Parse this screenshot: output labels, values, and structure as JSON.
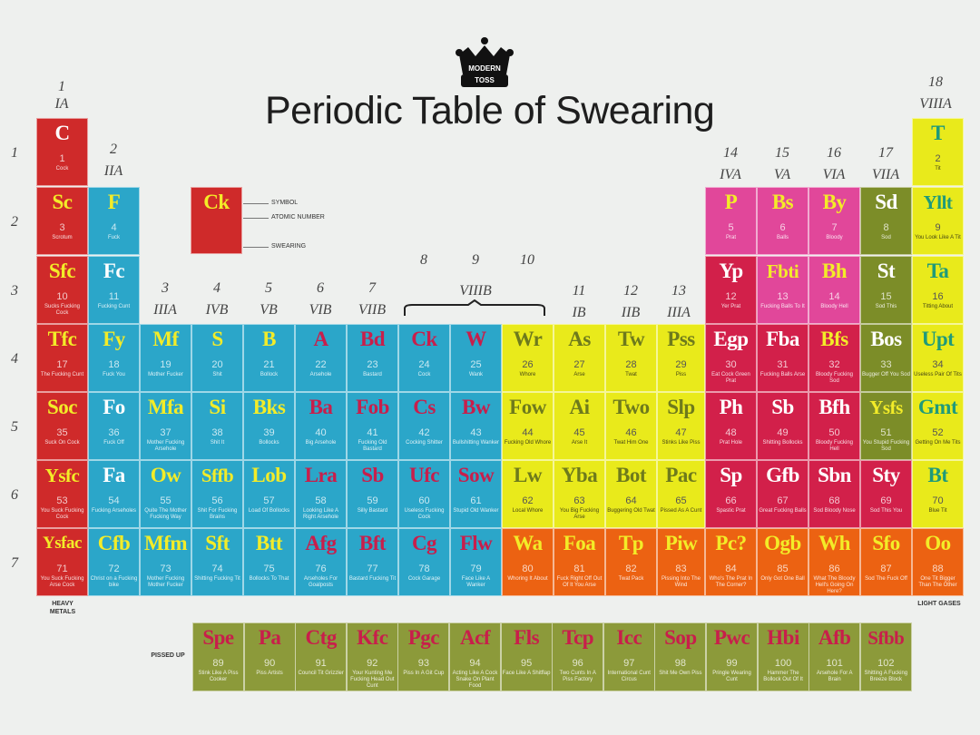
{
  "title": "Periodic Table of Swearing",
  "logo_text": [
    "MODERN",
    "TOSS"
  ],
  "groups": [
    "1",
    "IA",
    "2",
    "IIA",
    "3",
    "IIIA",
    "4",
    "IVB",
    "5",
    "VB",
    "6",
    "VIB",
    "7",
    "VIIB",
    "8",
    "9",
    "10",
    "VIIIB",
    "11",
    "IB",
    "12",
    "IIB",
    "13",
    "IIIA",
    "14",
    "IVA",
    "15",
    "VA",
    "16",
    "VIA",
    "17",
    "VIIA",
    "18",
    "VIIIA"
  ],
  "periods": [
    "1",
    "2",
    "3",
    "4",
    "5",
    "6",
    "7"
  ],
  "key": {
    "symbol": "Ck",
    "label_symbol": "SYMBOL",
    "label_number": "ATOMIC NUMBER",
    "label_swearing": "SWEARING"
  },
  "labels": {
    "heavy": "HEAVY METALS",
    "light": "LIGHT GASES",
    "pissed": "PISSED UP"
  },
  "colors": {
    "red": "#cf2a2a",
    "blue": "#2ba6c9",
    "yellow": "#e9ea1b",
    "pink": "#e1479a",
    "crimson": "#d2204a",
    "olive": "#7c8d28",
    "orange": "#ec6212",
    "khaki": "#8c9a3a",
    "sym_yellow": "#f3ec28",
    "sym_crimson": "#c81e4b",
    "sym_white": "#ffffff",
    "sym_green": "#1f9a7a",
    "sym_olive": "#6e7a1c"
  },
  "elements": [
    {
      "s": "C",
      "n": "1",
      "w": "Cock",
      "c": "red",
      "sc": "sym_white"
    },
    {
      "s": "Sc",
      "n": "3",
      "w": "Scrotum",
      "c": "red",
      "sc": "sym_yellow"
    },
    {
      "s": "F",
      "n": "4",
      "w": "Fuck",
      "c": "blue",
      "sc": "sym_yellow"
    },
    {
      "s": "Sfc",
      "n": "10",
      "w": "Sucks Fucking Cock",
      "c": "red",
      "sc": "sym_yellow"
    },
    {
      "s": "Fc",
      "n": "11",
      "w": "Fucking Cunt",
      "c": "blue",
      "sc": "sym_white"
    },
    {
      "s": "Tfc",
      "n": "17",
      "w": "The Fucking Cunt",
      "c": "red",
      "sc": "sym_yellow"
    },
    {
      "s": "Fy",
      "n": "18",
      "w": "Fuck You",
      "c": "blue",
      "sc": "sym_yellow"
    },
    {
      "s": "Mf",
      "n": "19",
      "w": "Mother Fucker",
      "c": "blue",
      "sc": "sym_yellow"
    },
    {
      "s": "S",
      "n": "20",
      "w": "Shit",
      "c": "blue",
      "sc": "sym_yellow"
    },
    {
      "s": "B",
      "n": "21",
      "w": "Bollock",
      "c": "blue",
      "sc": "sym_yellow"
    },
    {
      "s": "A",
      "n": "22",
      "w": "Arsehole",
      "c": "blue",
      "sc": "sym_crimson"
    },
    {
      "s": "Bd",
      "n": "23",
      "w": "Bastard",
      "c": "blue",
      "sc": "sym_crimson"
    },
    {
      "s": "Ck",
      "n": "24",
      "w": "Cock",
      "c": "blue",
      "sc": "sym_crimson"
    },
    {
      "s": "W",
      "n": "25",
      "w": "Wank",
      "c": "blue",
      "sc": "sym_crimson"
    },
    {
      "s": "Wr",
      "n": "26",
      "w": "Whore",
      "c": "yellow",
      "sc": "sym_olive"
    },
    {
      "s": "As",
      "n": "27",
      "w": "Arse",
      "c": "yellow",
      "sc": "sym_olive"
    },
    {
      "s": "Tw",
      "n": "28",
      "w": "Twat",
      "c": "yellow",
      "sc": "sym_olive"
    },
    {
      "s": "Pss",
      "n": "29",
      "w": "Piss",
      "c": "yellow",
      "sc": "sym_olive"
    },
    {
      "s": "Soc",
      "n": "35",
      "w": "Suck On Cock",
      "c": "red",
      "sc": "sym_yellow"
    },
    {
      "s": "Fo",
      "n": "36",
      "w": "Fuck Off",
      "c": "blue",
      "sc": "sym_white"
    },
    {
      "s": "Mfa",
      "n": "37",
      "w": "Mother Fucking Arsehole",
      "c": "blue",
      "sc": "sym_yellow"
    },
    {
      "s": "Si",
      "n": "38",
      "w": "Shit It",
      "c": "blue",
      "sc": "sym_yellow"
    },
    {
      "s": "Bks",
      "n": "39",
      "w": "Bollocks",
      "c": "blue",
      "sc": "sym_yellow"
    },
    {
      "s": "Ba",
      "n": "40",
      "w": "Big Arsehole",
      "c": "blue",
      "sc": "sym_crimson"
    },
    {
      "s": "Fob",
      "n": "41",
      "w": "Fucking Old Bastard",
      "c": "blue",
      "sc": "sym_crimson"
    },
    {
      "s": "Cs",
      "n": "42",
      "w": "Cocking Shitter",
      "c": "blue",
      "sc": "sym_crimson"
    },
    {
      "s": "Bw",
      "n": "43",
      "w": "Bullshitting Wanker",
      "c": "blue",
      "sc": "sym_crimson"
    },
    {
      "s": "Fow",
      "n": "44",
      "w": "Fucking Old Whore",
      "c": "yellow",
      "sc": "sym_olive"
    },
    {
      "s": "Ai",
      "n": "45",
      "w": "Arse It",
      "c": "yellow",
      "sc": "sym_olive"
    },
    {
      "s": "Two",
      "n": "46",
      "w": "Twat Him One",
      "c": "yellow",
      "sc": "sym_olive"
    },
    {
      "s": "Slp",
      "n": "47",
      "w": "Stinks Like Piss",
      "c": "yellow",
      "sc": "sym_olive"
    },
    {
      "s": "Ysfc",
      "n": "53",
      "w": "You Suck Fucking Cock",
      "c": "red",
      "sc": "sym_yellow"
    },
    {
      "s": "Fa",
      "n": "54",
      "w": "Fucking Arseholes",
      "c": "blue",
      "sc": "sym_white"
    },
    {
      "s": "Ow",
      "n": "55",
      "w": "Quite The Mother Fucking Way",
      "c": "blue",
      "sc": "sym_yellow"
    },
    {
      "s": "Sffb",
      "n": "56",
      "w": "Shit For Fucking Brains",
      "c": "blue",
      "sc": "sym_yellow"
    },
    {
      "s": "Lob",
      "n": "57",
      "w": "Load Of Bollocks",
      "c": "blue",
      "sc": "sym_yellow"
    },
    {
      "s": "Lra",
      "n": "58",
      "w": "Looking Like A Right Arsehole",
      "c": "blue",
      "sc": "sym_crimson"
    },
    {
      "s": "Sb",
      "n": "59",
      "w": "Silly Bastard",
      "c": "blue",
      "sc": "sym_crimson"
    },
    {
      "s": "Ufc",
      "n": "60",
      "w": "Useless Fucking Cock",
      "c": "blue",
      "sc": "sym_crimson"
    },
    {
      "s": "Sow",
      "n": "61",
      "w": "Stupid Old Wanker",
      "c": "blue",
      "sc": "sym_crimson"
    },
    {
      "s": "Lw",
      "n": "62",
      "w": "Local Whore",
      "c": "yellow",
      "sc": "sym_olive"
    },
    {
      "s": "Yba",
      "n": "63",
      "w": "You Big Fucking Arse",
      "c": "yellow",
      "sc": "sym_olive"
    },
    {
      "s": "Bot",
      "n": "64",
      "w": "Buggering Old Twat",
      "c": "yellow",
      "sc": "sym_olive"
    },
    {
      "s": "Pac",
      "n": "65",
      "w": "Pissed As A Cunt",
      "c": "yellow",
      "sc": "sym_olive"
    },
    {
      "s": "Ysfac",
      "n": "71",
      "w": "You Suck Fucking Arse Cock",
      "c": "red",
      "sc": "sym_yellow"
    },
    {
      "s": "Cfb",
      "n": "72",
      "w": "Christ on a Fucking bike",
      "c": "blue",
      "sc": "sym_yellow"
    },
    {
      "s": "Mfm",
      "n": "73",
      "w": "Mother Fucking Mother Fucker",
      "c": "blue",
      "sc": "sym_yellow"
    },
    {
      "s": "Sft",
      "n": "74",
      "w": "Shitting Fucking Tit",
      "c": "blue",
      "sc": "sym_yellow"
    },
    {
      "s": "Btt",
      "n": "75",
      "w": "Bollocks To That",
      "c": "blue",
      "sc": "sym_yellow"
    },
    {
      "s": "Afg",
      "n": "76",
      "w": "Arseholes For Goalposts",
      "c": "blue",
      "sc": "sym_crimson"
    },
    {
      "s": "Bft",
      "n": "77",
      "w": "Bastard Fucking Tit",
      "c": "blue",
      "sc": "sym_crimson"
    },
    {
      "s": "Cg",
      "n": "78",
      "w": "Cock Garage",
      "c": "blue",
      "sc": "sym_crimson"
    },
    {
      "s": "Flw",
      "n": "79",
      "w": "Face Like A Wanker",
      "c": "blue",
      "sc": "sym_crimson"
    },
    {
      "s": "Wa",
      "n": "80",
      "w": "Whoring It About",
      "c": "orange",
      "sc": "sym_yellow"
    },
    {
      "s": "Foa",
      "n": "81",
      "w": "Fuck Right Off Out Of It You Arse",
      "c": "orange",
      "sc": "sym_yellow"
    },
    {
      "s": "Tp",
      "n": "82",
      "w": "Twat Pack",
      "c": "orange",
      "sc": "sym_yellow"
    },
    {
      "s": "Piw",
      "n": "83",
      "w": "Pissing Into The Wind",
      "c": "orange",
      "sc": "sym_yellow"
    },
    {
      "s": "P",
      "n": "5",
      "w": "Prat",
      "c": "pink",
      "sc": "sym_yellow"
    },
    {
      "s": "Bs",
      "n": "6",
      "w": "Balls",
      "c": "pink",
      "sc": "sym_yellow"
    },
    {
      "s": "By",
      "n": "7",
      "w": "Bloody",
      "c": "pink",
      "sc": "sym_yellow"
    },
    {
      "s": "Sd",
      "n": "8",
      "w": "Sod",
      "c": "olive",
      "sc": "sym_white"
    },
    {
      "s": "Yp",
      "n": "12",
      "w": "Yer Prat",
      "c": "crimson",
      "sc": "sym_white"
    },
    {
      "s": "Fbti",
      "n": "13",
      "w": "Fucking Balls To It",
      "c": "pink",
      "sc": "sym_yellow"
    },
    {
      "s": "Bh",
      "n": "14",
      "w": "Bloody Hell",
      "c": "pink",
      "sc": "sym_yellow"
    },
    {
      "s": "St",
      "n": "15",
      "w": "Sod This",
      "c": "olive",
      "sc": "sym_white"
    },
    {
      "s": "Egp",
      "n": "30",
      "w": "Eat Cock Green Prat",
      "c": "crimson",
      "sc": "sym_white"
    },
    {
      "s": "Fba",
      "n": "31",
      "w": "Fucking Balls Arse",
      "c": "crimson",
      "sc": "sym_white"
    },
    {
      "s": "Bfs",
      "n": "32",
      "w": "Bloody Fucking Sod",
      "c": "crimson",
      "sc": "sym_yellow"
    },
    {
      "s": "Bos",
      "n": "33",
      "w": "Bugger Off You Sod",
      "c": "olive",
      "sc": "sym_white"
    },
    {
      "s": "Ph",
      "n": "48",
      "w": "Prat Hole",
      "c": "crimson",
      "sc": "sym_white"
    },
    {
      "s": "Sb",
      "n": "49",
      "w": "Shitting Bollocks",
      "c": "crimson",
      "sc": "sym_white"
    },
    {
      "s": "Bfh",
      "n": "50",
      "w": "Bloody Fucking Hell",
      "c": "crimson",
      "sc": "sym_white"
    },
    {
      "s": "Ysfs",
      "n": "51",
      "w": "You Stupid Fucking Sod",
      "c": "olive",
      "sc": "sym_yellow"
    },
    {
      "s": "Sp",
      "n": "66",
      "w": "Spastic Prat",
      "c": "crimson",
      "sc": "sym_white"
    },
    {
      "s": "Gfb",
      "n": "67",
      "w": "Great Fucking Balls",
      "c": "crimson",
      "sc": "sym_white"
    },
    {
      "s": "Sbn",
      "n": "68",
      "w": "Sod Bloody Nose",
      "c": "crimson",
      "sc": "sym_white"
    },
    {
      "s": "Sty",
      "n": "69",
      "w": "Sod This You",
      "c": "crimson",
      "sc": "sym_white"
    },
    {
      "s": "Pc?",
      "n": "84",
      "w": "Who's The Prat In The Corner?",
      "c": "orange",
      "sc": "sym_yellow"
    },
    {
      "s": "Ogb",
      "n": "85",
      "w": "Only Got One Ball",
      "c": "orange",
      "sc": "sym_yellow"
    },
    {
      "s": "Wh",
      "n": "86",
      "w": "What The Bloody Hell's Going On Here?",
      "c": "orange",
      "sc": "sym_yellow"
    },
    {
      "s": "Sfo",
      "n": "87",
      "w": "Sod The Fuck Off",
      "c": "orange",
      "sc": "sym_yellow"
    },
    {
      "s": "T",
      "n": "2",
      "w": "Tit",
      "c": "yellow",
      "sc": "sym_green"
    },
    {
      "s": "Yllt",
      "n": "9",
      "w": "You Look Like A Tit",
      "c": "yellow",
      "sc": "sym_green"
    },
    {
      "s": "Ta",
      "n": "16",
      "w": "Titting About",
      "c": "yellow",
      "sc": "sym_green"
    },
    {
      "s": "Upt",
      "n": "34",
      "w": "Useless Pair Of Tits",
      "c": "yellow",
      "sc": "sym_green"
    },
    {
      "s": "Gmt",
      "n": "52",
      "w": "Getting On Me Tits",
      "c": "yellow",
      "sc": "sym_green"
    },
    {
      "s": "Bt",
      "n": "70",
      "w": "Blue Tit",
      "c": "yellow",
      "sc": "sym_green"
    },
    {
      "s": "Oo",
      "n": "88",
      "w": "One Tit Bigger Than The Other",
      "c": "orange",
      "sc": "sym_yellow"
    },
    {
      "s": "Spe",
      "n": "89",
      "w": "Stink Like A Piss Cooker",
      "c": "khaki",
      "sc": "sym_crimson"
    },
    {
      "s": "Pa",
      "n": "90",
      "w": "Piss Artists",
      "c": "khaki",
      "sc": "sym_crimson"
    },
    {
      "s": "Ctg",
      "n": "91",
      "w": "Council Tit Grizzler",
      "c": "khaki",
      "sc": "sym_crimson"
    },
    {
      "s": "Kfc",
      "n": "92",
      "w": "Your Kunting Me Fucking Head Out Cunt",
      "c": "khaki",
      "sc": "sym_crimson"
    },
    {
      "s": "Pgc",
      "n": "93",
      "w": "Piss In A Git Cup",
      "c": "khaki",
      "sc": "sym_crimson"
    },
    {
      "s": "Acf",
      "n": "94",
      "w": "Acting Like A Cock Snake On Plant Food",
      "c": "khaki",
      "sc": "sym_crimson"
    },
    {
      "s": "Fls",
      "n": "95",
      "w": "Face Like A Shitflap",
      "c": "khaki",
      "sc": "sym_crimson"
    },
    {
      "s": "Tcp",
      "n": "96",
      "w": "Two Cunts In A Piss Factory",
      "c": "khaki",
      "sc": "sym_crimson"
    },
    {
      "s": "Icc",
      "n": "97",
      "w": "International Cunt Circus",
      "c": "khaki",
      "sc": "sym_crimson"
    },
    {
      "s": "Sop",
      "n": "98",
      "w": "Shit Me Own Piss",
      "c": "khaki",
      "sc": "sym_crimson"
    },
    {
      "s": "Pwc",
      "n": "99",
      "w": "Pringle Wearing Cunt",
      "c": "khaki",
      "sc": "sym_crimson"
    },
    {
      "s": "Hbi",
      "n": "100",
      "w": "Hammer The Bollock Out Of It",
      "c": "khaki",
      "sc": "sym_crimson"
    },
    {
      "s": "Afb",
      "n": "101",
      "w": "Arsehole For A Brain",
      "c": "khaki",
      "sc": "sym_crimson"
    },
    {
      "s": "Sfbb",
      "n": "102",
      "w": "Shitting A Fucking Breeze Block",
      "c": "khaki",
      "sc": "sym_crimson"
    }
  ]
}
